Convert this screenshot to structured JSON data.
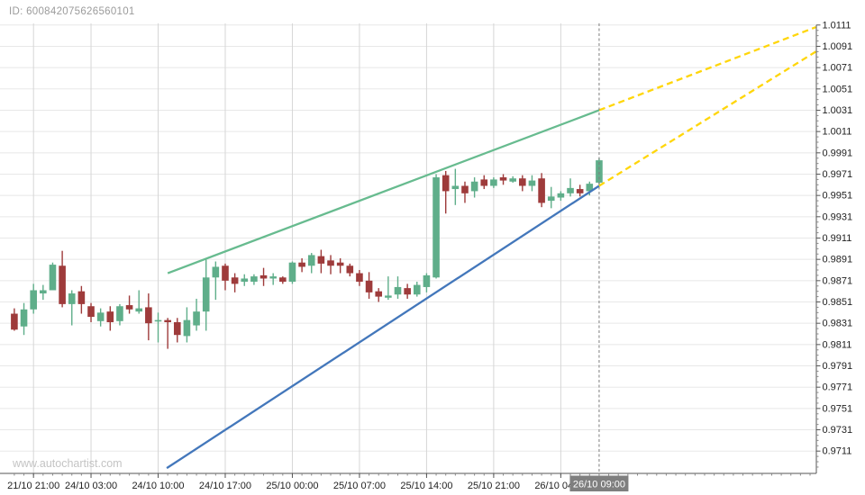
{
  "chart": {
    "id_label": "ID: 600842075626560101",
    "watermark": "www.autochartist.com"
  },
  "chart_data": {
    "type": "candlestick",
    "instrument_timeframe": "hourly",
    "y_axis": {
      "side": "right",
      "tick_labels": [
        "1.0111",
        "1.0091",
        "1.0071",
        "1.0051",
        "1.0031",
        "1.0011",
        "0.9991",
        "0.9971",
        "0.9951",
        "0.9931",
        "0.9911",
        "0.9891",
        "0.9871",
        "0.9851",
        "0.9831",
        "0.9811",
        "0.9791",
        "0.9771",
        "0.9751",
        "0.9731",
        "0.9711"
      ],
      "max": 1.0111,
      "min": 0.9711,
      "major_step": 0.002,
      "minor_step": 0.0005
    },
    "x_axis": {
      "labels": [
        {
          "index": 2,
          "label": "21/10 21:00"
        },
        {
          "index": 8,
          "label": "24/10 03:00"
        },
        {
          "index": 15,
          "label": "24/10 10:00"
        },
        {
          "index": 22,
          "label": "24/10 17:00"
        },
        {
          "index": 29,
          "label": "25/10 00:00"
        },
        {
          "index": 36,
          "label": "25/10 07:00"
        },
        {
          "index": 43,
          "label": "25/10 14:00"
        },
        {
          "index": 50,
          "label": "25/10 21:00"
        },
        {
          "index": 57,
          "label": "26/10 04:00"
        }
      ],
      "highlight": {
        "index": 61,
        "label": "26/10 09:00"
      }
    },
    "current_time_line_index": 61,
    "candles_ohlc": [
      [
        0.984,
        0.9845,
        0.9824,
        0.9825
      ],
      [
        0.9828,
        0.985,
        0.982,
        0.9844
      ],
      [
        0.9844,
        0.9868,
        0.984,
        0.9862
      ],
      [
        0.9859,
        0.9867,
        0.9853,
        0.9862
      ],
      [
        0.9862,
        0.9888,
        0.9862,
        0.9886
      ],
      [
        0.9885,
        0.9899,
        0.9846,
        0.9849
      ],
      [
        0.9849,
        0.9862,
        0.9829,
        0.9859
      ],
      [
        0.9861,
        0.9866,
        0.984,
        0.9849
      ],
      [
        0.9847,
        0.985,
        0.9832,
        0.9837
      ],
      [
        0.9833,
        0.9845,
        0.9828,
        0.9841
      ],
      [
        0.9842,
        0.9847,
        0.9824,
        0.9832
      ],
      [
        0.9833,
        0.9849,
        0.9829,
        0.9847
      ],
      [
        0.9848,
        0.9857,
        0.984,
        0.9844
      ],
      [
        0.9842,
        0.9862,
        0.984,
        0.9845
      ],
      [
        0.9846,
        0.9859,
        0.9815,
        0.9831
      ],
      [
        0.9833,
        0.9841,
        0.9813,
        0.9834
      ],
      [
        0.9834,
        0.9836,
        0.9807,
        0.9832
      ],
      [
        0.9832,
        0.9836,
        0.9813,
        0.982
      ],
      [
        0.9819,
        0.9846,
        0.9813,
        0.9834
      ],
      [
        0.9829,
        0.9854,
        0.9824,
        0.9842
      ],
      [
        0.9842,
        0.9891,
        0.9824,
        0.9874
      ],
      [
        0.9874,
        0.9889,
        0.9853,
        0.9884
      ],
      [
        0.9885,
        0.9887,
        0.9862,
        0.9871
      ],
      [
        0.9874,
        0.9878,
        0.986,
        0.9868
      ],
      [
        0.987,
        0.9877,
        0.9866,
        0.9873
      ],
      [
        0.987,
        0.9877,
        0.9867,
        0.9875
      ],
      [
        0.9876,
        0.9883,
        0.9866,
        0.9873
      ],
      [
        0.9873,
        0.9878,
        0.9867,
        0.9875
      ],
      [
        0.9874,
        0.9875,
        0.9868,
        0.987
      ],
      [
        0.987,
        0.9889,
        0.9868,
        0.9888
      ],
      [
        0.9888,
        0.9892,
        0.9879,
        0.9884
      ],
      [
        0.9885,
        0.9897,
        0.9878,
        0.9895
      ],
      [
        0.9894,
        0.99,
        0.9878,
        0.9887
      ],
      [
        0.989,
        0.9895,
        0.9877,
        0.9885
      ],
      [
        0.9888,
        0.9892,
        0.9878,
        0.9885
      ],
      [
        0.9885,
        0.9887,
        0.9875,
        0.9878
      ],
      [
        0.9878,
        0.9881,
        0.9866,
        0.987
      ],
      [
        0.9871,
        0.9879,
        0.9854,
        0.986
      ],
      [
        0.9861,
        0.9864,
        0.9851,
        0.9856
      ],
      [
        0.9855,
        0.9875,
        0.9853,
        0.9857
      ],
      [
        0.9858,
        0.9875,
        0.9854,
        0.9865
      ],
      [
        0.9864,
        0.9868,
        0.9854,
        0.9858
      ],
      [
        0.9858,
        0.987,
        0.9856,
        0.9867
      ],
      [
        0.9865,
        0.9878,
        0.986,
        0.9876
      ],
      [
        0.9874,
        0.9971,
        0.9873,
        0.9968
      ],
      [
        0.997,
        0.9974,
        0.9934,
        0.9955
      ],
      [
        0.9957,
        0.9976,
        0.9942,
        0.996
      ],
      [
        0.996,
        0.9964,
        0.9944,
        0.9953
      ],
      [
        0.9955,
        0.9968,
        0.9949,
        0.9964
      ],
      [
        0.9966,
        0.997,
        0.9957,
        0.996
      ],
      [
        0.996,
        0.9968,
        0.9958,
        0.9966
      ],
      [
        0.9968,
        0.9971,
        0.9961,
        0.9965
      ],
      [
        0.9964,
        0.9969,
        0.9963,
        0.9967
      ],
      [
        0.9967,
        0.997,
        0.9955,
        0.996
      ],
      [
        0.996,
        0.997,
        0.9955,
        0.9965
      ],
      [
        0.9967,
        0.9972,
        0.994,
        0.9944
      ],
      [
        0.9946,
        0.9959,
        0.9939,
        0.995
      ],
      [
        0.9949,
        0.9955,
        0.9946,
        0.9953
      ],
      [
        0.9953,
        0.9967,
        0.995,
        0.9958
      ],
      [
        0.9957,
        0.9961,
        0.995,
        0.9953
      ],
      [
        0.9955,
        0.9964,
        0.9951,
        0.9962
      ],
      [
        0.9963,
        0.9986,
        0.9961,
        0.9984
      ]
    ],
    "trendlines": [
      {
        "name": "upper-trendline",
        "style": "solid",
        "color": "#67bb8f",
        "from": {
          "index": 16.0,
          "price": 0.9878
        },
        "to": {
          "index": 61,
          "price": 1.0031
        }
      },
      {
        "name": "lower-trendline",
        "style": "solid",
        "color": "#4377bb",
        "from": {
          "index": 15.9,
          "price": 0.9695
        },
        "to": {
          "index": 61,
          "price": 0.996
        }
      },
      {
        "name": "upper-forecast-extension",
        "style": "dashed",
        "color": "#ffd60a",
        "from": {
          "index": 61,
          "price": 1.0031
        },
        "to": {
          "index": 83.6,
          "price": 1.0109
        }
      },
      {
        "name": "lower-forecast-extension",
        "style": "dashed",
        "color": "#ffd60a",
        "from": {
          "index": 61,
          "price": 0.996
        },
        "to": {
          "index": 83.6,
          "price": 1.0086
        }
      }
    ],
    "colors": {
      "candle_up": "#5fae8a",
      "candle_down": "#9e3b3b",
      "trend_green": "#67bb8f",
      "trend_blue": "#4377bb",
      "forecast_yellow": "#ffd60a",
      "current_time_line": "#7d7d7d",
      "highlight_box_bg": "#7f7f7f",
      "highlight_box_text": "#ffffff",
      "grid_horizontal": "#e8e8e8",
      "grid_vertical": "#d6d6d6",
      "axis_line": "#555555",
      "tick_label": "#222222"
    }
  }
}
